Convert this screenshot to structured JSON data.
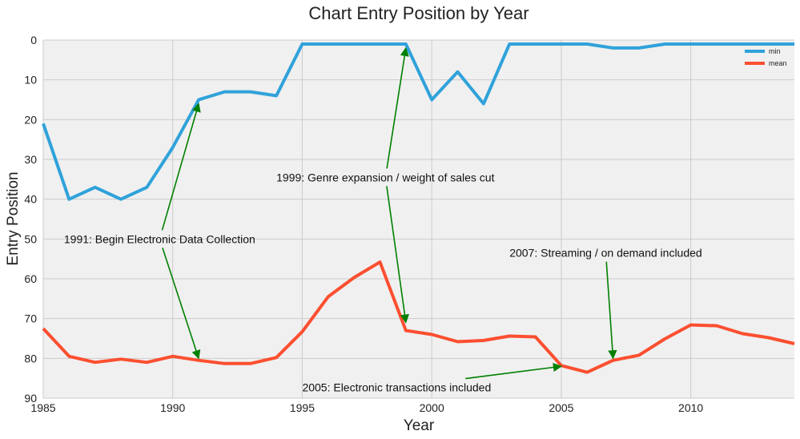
{
  "chart_data": {
    "type": "line",
    "title": "Chart Entry Position by Year",
    "xlabel": "Year",
    "ylabel": "Entry Position",
    "xlim": [
      1985,
      2014
    ],
    "ylim": [
      90,
      0
    ],
    "y_inverted": true,
    "x_ticks": [
      1985,
      1990,
      1995,
      2000,
      2005,
      2010
    ],
    "y_ticks": [
      0,
      10,
      20,
      30,
      40,
      50,
      60,
      70,
      80,
      90
    ],
    "grid": true,
    "legend_position": "top-right",
    "x": [
      1985,
      1986,
      1987,
      1988,
      1989,
      1990,
      1991,
      1992,
      1993,
      1994,
      1995,
      1996,
      1997,
      1998,
      1999,
      2000,
      2001,
      2002,
      2003,
      2004,
      2005,
      2006,
      2007,
      2008,
      2009,
      2010,
      2011,
      2012,
      2013,
      2014
    ],
    "series": [
      {
        "name": "min",
        "color": "#30a2da",
        "values": [
          21,
          40,
          37,
          40,
          37,
          27,
          15,
          13,
          13,
          14,
          1,
          1,
          1,
          1,
          1,
          15,
          8,
          16,
          1,
          1,
          1,
          1,
          2,
          2,
          1,
          1,
          1,
          1,
          1,
          1
        ]
      },
      {
        "name": "mean",
        "color": "#fc4f30",
        "values": [
          72.5,
          79.5,
          81,
          80.2,
          81,
          79.5,
          80.5,
          81.3,
          81.3,
          79.8,
          73.3,
          64.5,
          59.7,
          55.8,
          73,
          74,
          75.8,
          75.5,
          74.4,
          74.6,
          81.8,
          83.5,
          80.5,
          79.2,
          75.1,
          71.6,
          71.8,
          73.8,
          74.8,
          76.3
        ]
      }
    ],
    "annotations": [
      {
        "text": "1991: Begin Electronic Data Collection",
        "targets": [
          {
            "x": 1991,
            "y": 16
          },
          {
            "x": 1991,
            "y": 80
          }
        ],
        "text_pos": {
          "x": 1985.8,
          "y": 50
        }
      },
      {
        "text": "1999: Genre expansion / weight of sales cut",
        "targets": [
          {
            "x": 1999,
            "y": 2
          },
          {
            "x": 1999,
            "y": 71
          }
        ],
        "text_pos": {
          "x": 1994,
          "y": 34.5
        }
      },
      {
        "text": "2007: Streaming / on demand included",
        "targets": [
          {
            "x": 2007,
            "y": 80
          }
        ],
        "text_pos": {
          "x": 2003,
          "y": 53.5
        }
      },
      {
        "text": "2005: Electronic transactions included",
        "targets": [
          {
            "x": 2005,
            "y": 82
          }
        ],
        "text_pos": {
          "x": 1995,
          "y": 87.3
        }
      }
    ],
    "arrow_color": "#008000"
  }
}
